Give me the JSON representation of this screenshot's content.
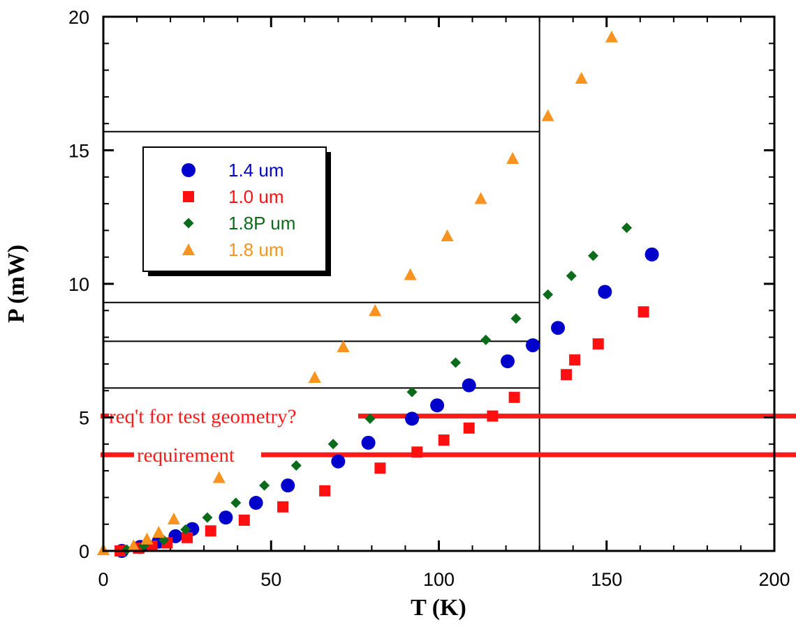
{
  "chart_data": {
    "type": "scatter",
    "xlabel": "T (K)",
    "ylabel": "P (mW)",
    "xlim": [
      0,
      200
    ],
    "ylim": [
      0,
      20
    ],
    "x_ticks": [
      0,
      50,
      100,
      150,
      200
    ],
    "y_ticks": [
      0,
      5,
      10,
      15,
      20
    ],
    "grid": false,
    "legend_position": "upper-left",
    "series": [
      {
        "name": "1.4 um",
        "marker": "circle",
        "color": "#0000cc",
        "points": [
          [
            5.5,
            0.0
          ],
          [
            11,
            0.15
          ],
          [
            16.5,
            0.35
          ],
          [
            21.5,
            0.55
          ],
          [
            26.5,
            0.82
          ],
          [
            36.5,
            1.25
          ],
          [
            45.5,
            1.8
          ],
          [
            55,
            2.45
          ],
          [
            70,
            3.35
          ],
          [
            79,
            4.05
          ],
          [
            92,
            4.95
          ],
          [
            99.5,
            5.45
          ],
          [
            109,
            6.2
          ],
          [
            120.5,
            7.1
          ],
          [
            128,
            7.7
          ],
          [
            135.5,
            8.35
          ],
          [
            149.5,
            9.7
          ],
          [
            163.5,
            11.1
          ]
        ]
      },
      {
        "name": "1.0 um",
        "marker": "square",
        "color": "#ff1010",
        "points": [
          [
            5,
            0.0
          ],
          [
            10.5,
            0.1
          ],
          [
            14.5,
            0.18
          ],
          [
            19,
            0.3
          ],
          [
            25,
            0.5
          ],
          [
            32,
            0.75
          ],
          [
            42,
            1.15
          ],
          [
            53.5,
            1.65
          ],
          [
            66,
            2.25
          ],
          [
            82.5,
            3.1
          ],
          [
            93.5,
            3.7
          ],
          [
            101.5,
            4.15
          ],
          [
            109,
            4.6
          ],
          [
            116,
            5.05
          ],
          [
            122.5,
            5.75
          ],
          [
            138,
            6.6
          ],
          [
            140.5,
            7.15
          ],
          [
            147.5,
            7.75
          ],
          [
            161,
            8.95
          ]
        ]
      },
      {
        "name": "1.8P um",
        "marker": "diamond",
        "color": "#0a6b1a",
        "points": [
          [
            7,
            0.05
          ],
          [
            12,
            0.2
          ],
          [
            18,
            0.4
          ],
          [
            24.5,
            0.8
          ],
          [
            31,
            1.25
          ],
          [
            39.5,
            1.8
          ],
          [
            48,
            2.45
          ],
          [
            57.5,
            3.2
          ],
          [
            68.5,
            4.0
          ],
          [
            79.5,
            4.95
          ],
          [
            92,
            5.95
          ],
          [
            105,
            7.05
          ],
          [
            114,
            7.9
          ],
          [
            123,
            8.7
          ],
          [
            132.5,
            9.6
          ],
          [
            139.5,
            10.3
          ],
          [
            146,
            11.05
          ],
          [
            156,
            12.1
          ]
        ]
      },
      {
        "name": "1.8 um",
        "marker": "triangle",
        "color": "#f7931e",
        "points": [
          [
            0,
            0.05
          ],
          [
            9,
            0.2
          ],
          [
            13,
            0.45
          ],
          [
            16.5,
            0.7
          ],
          [
            21,
            1.2
          ],
          [
            34.5,
            2.75
          ],
          [
            63,
            6.5
          ],
          [
            71.5,
            7.65
          ],
          [
            81,
            9.0
          ],
          [
            91.5,
            10.35
          ],
          [
            102.5,
            11.8
          ],
          [
            112.5,
            13.2
          ],
          [
            122,
            14.7
          ],
          [
            132.5,
            16.3
          ],
          [
            142.5,
            17.7
          ],
          [
            151.5,
            19.25
          ]
        ]
      }
    ],
    "reference_lines": [
      {
        "label": "req't for test geometry?",
        "y": 5.05,
        "color": "#ff1a1a"
      },
      {
        "label": "requirement",
        "y": 3.6,
        "color": "#ff1a1a"
      }
    ],
    "box_lines": [
      {
        "type": "horizontal",
        "y": 15.7,
        "x_from": 0,
        "x_to": 130
      },
      {
        "type": "horizontal",
        "y": 9.3,
        "x_from": 0,
        "x_to": 130
      },
      {
        "type": "horizontal",
        "y": 7.85,
        "x_from": 0,
        "x_to": 130
      },
      {
        "type": "horizontal",
        "y": 6.1,
        "x_from": 0,
        "x_to": 130
      },
      {
        "type": "vertical",
        "x": 130,
        "y_from": 0,
        "y_to": 20
      }
    ]
  }
}
